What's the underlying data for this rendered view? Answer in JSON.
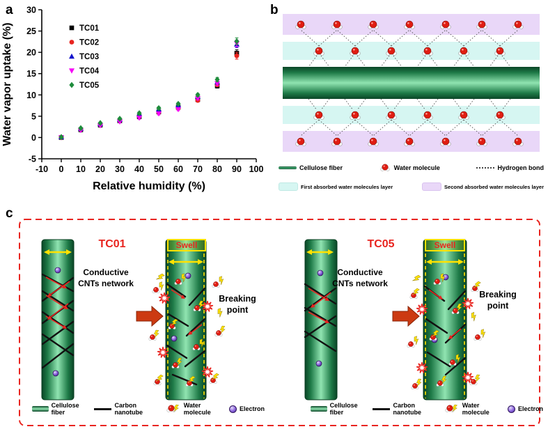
{
  "figure": {
    "panel_a_label": "a",
    "panel_b_label": "b",
    "panel_c_label": "c"
  },
  "chart_data": {
    "type": "scatter",
    "title": "",
    "xlabel": "Relative humidity (%)",
    "ylabel": "Water vapor uptake (%)",
    "xlim": [
      -10,
      100
    ],
    "ylim": [
      -5,
      30
    ],
    "xticks": [
      -10,
      0,
      10,
      20,
      30,
      40,
      50,
      60,
      70,
      80,
      90,
      100
    ],
    "yticks": [
      -5,
      0,
      5,
      10,
      15,
      20,
      25,
      30
    ],
    "x": [
      0,
      10,
      20,
      30,
      40,
      50,
      60,
      70,
      80,
      90
    ],
    "yerr": [
      0.2,
      0.2,
      0.2,
      0.25,
      0.3,
      0.3,
      0.3,
      0.35,
      0.5,
      0.8
    ],
    "grid": false,
    "legend_position": "upper-left",
    "series": [
      {
        "name": "TC01",
        "marker": "square",
        "color": "#000000",
        "values": [
          0,
          1.8,
          2.9,
          3.9,
          4.9,
          6.0,
          7.1,
          8.9,
          12.1,
          19.8
        ]
      },
      {
        "name": "TC02",
        "marker": "circle",
        "color": "#e8241f",
        "values": [
          0,
          1.9,
          3.0,
          4.0,
          5.0,
          5.9,
          6.9,
          8.7,
          12.4,
          19.2
        ]
      },
      {
        "name": "TC03",
        "marker": "triangle-up",
        "color": "#1414cc",
        "values": [
          0.1,
          2.1,
          3.2,
          4.2,
          5.5,
          6.6,
          7.6,
          9.6,
          13.0,
          21.9
        ]
      },
      {
        "name": "TC04",
        "marker": "triangle-down",
        "color": "#f600f6",
        "values": [
          0,
          1.7,
          2.8,
          3.7,
          4.6,
          5.6,
          6.6,
          9.2,
          12.7,
          22.1
        ]
      },
      {
        "name": "TC05",
        "marker": "diamond",
        "color": "#1e8c3c",
        "values": [
          0.1,
          2.2,
          3.4,
          4.4,
          5.7,
          6.9,
          7.9,
          10.0,
          13.6,
          22.6
        ]
      }
    ]
  },
  "panel_b": {
    "legend_row1": [
      {
        "icon": "cellulose-fiber-line",
        "label": "Cellulose fiber"
      },
      {
        "icon": "water-molecule",
        "label": "Water molecule"
      },
      {
        "icon": "hydrogen-bond",
        "label": "Hydrogen bond"
      }
    ],
    "legend_row2": [
      {
        "icon": "first-layer-swatch",
        "label": "First absorbed water molecules layer",
        "color": "#d6f6f2"
      },
      {
        "icon": "second-layer-swatch",
        "label": "Second absorbed water molecules layer",
        "color": "#e9d7f8"
      }
    ]
  },
  "panel_c": {
    "left": {
      "title": "TC01",
      "network_label": "Conductive CNTs network",
      "swell_label": "Swell",
      "breaking_label": "Breaking point"
    },
    "right": {
      "title": "TC05",
      "network_label": "Conductive CNTs network",
      "swell_label": "Swell",
      "breaking_label": "Breaking point"
    },
    "legend": [
      {
        "icon": "cellulose-fiber-swatch",
        "label": "Cellulose fiber"
      },
      {
        "icon": "carbon-nanotube-line",
        "label": "Carbon nanotube"
      },
      {
        "icon": "water-molecule-with-bolt",
        "label": "Water molecule"
      },
      {
        "icon": "electron",
        "label": "Electron"
      }
    ]
  },
  "colors": {
    "accent_red": "#e8241f",
    "fiber_green_dark": "#0a4526",
    "fiber_green_light": "#90e4b1",
    "first_layer_cyan": "#d6f6f2",
    "second_layer_purple": "#e9d7f8",
    "bolt_yellow": "#ffe300",
    "electron_purple": "#7e57d6"
  }
}
